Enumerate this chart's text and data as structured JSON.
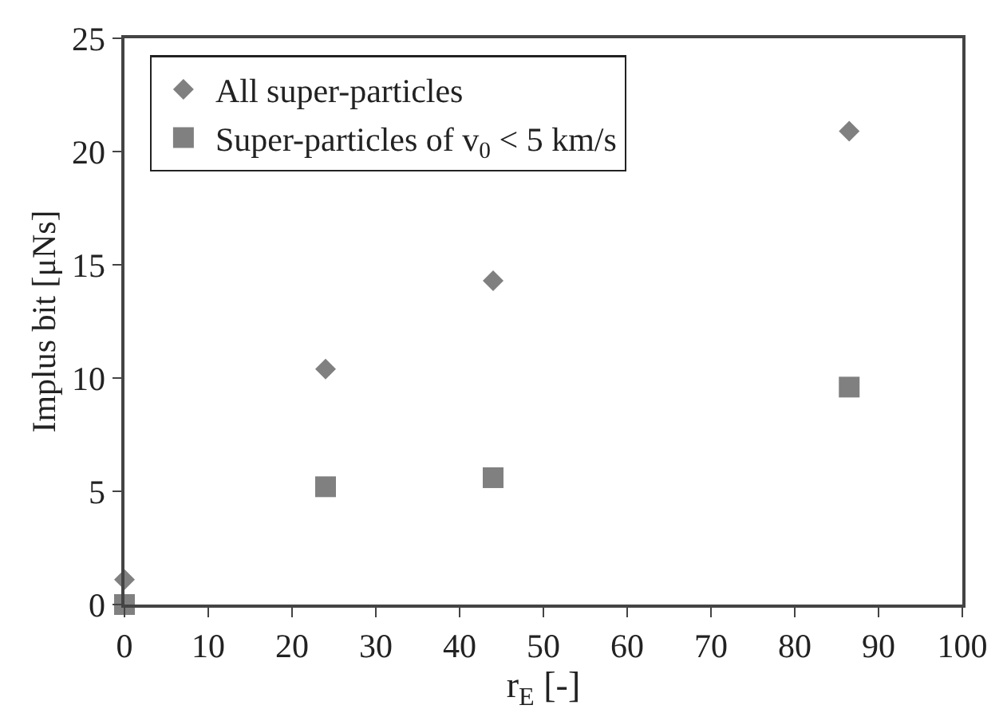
{
  "chart_data": {
    "type": "scatter",
    "xlabel": "r$_{E}$ [-]",
    "ylabel": "Implus bit [μNs]",
    "series": [
      {
        "name": "All super-particles",
        "color": "#808080",
        "marker": "diamond",
        "x": [
          0,
          24,
          44,
          86.5
        ],
        "values": [
          1.1,
          10.4,
          14.3,
          20.9
        ]
      },
      {
        "name": "Super-particles of v$_{0}$ < 5 km/s",
        "color": "#808080",
        "marker": "square",
        "x": [
          0,
          24,
          44,
          86.5
        ],
        "values": [
          0,
          5.2,
          5.6,
          9.6
        ]
      }
    ],
    "xlim": [
      0,
      100
    ],
    "xticks": [
      0,
      10,
      20,
      30,
      40,
      50,
      60,
      70,
      80,
      90,
      100
    ],
    "ylim": [
      0,
      25
    ],
    "yticks": [
      0,
      5,
      10,
      15,
      20,
      25
    ],
    "legend": "top left"
  }
}
